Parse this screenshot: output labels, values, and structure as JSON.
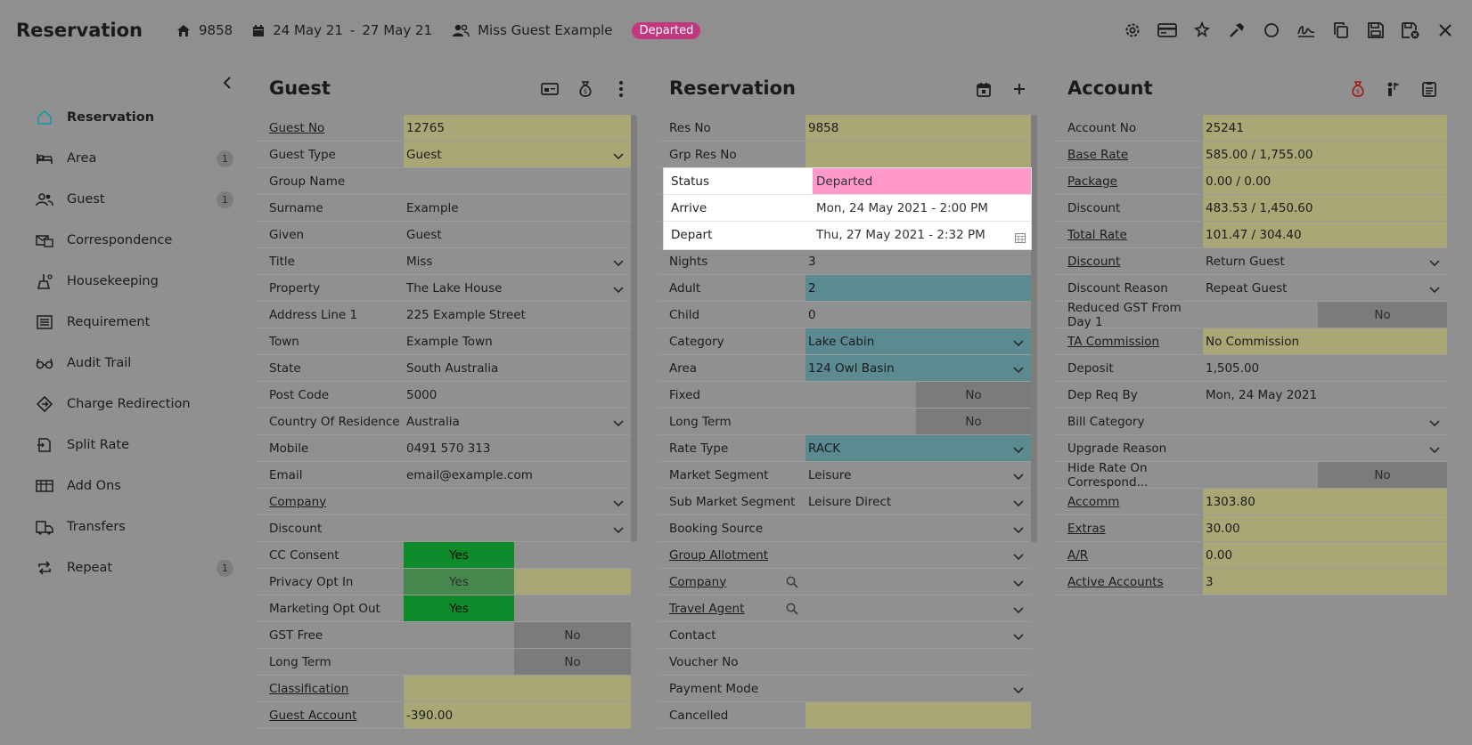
{
  "header": {
    "title": "Reservation",
    "res_no": "9858",
    "arrive": "24 May 21",
    "dash": "-",
    "depart": "27 May 21",
    "guest": "Miss Guest Example",
    "status": "Departed"
  },
  "sidebar": {
    "items": [
      {
        "label": "Reservation",
        "icon": "home-icon",
        "count": ""
      },
      {
        "label": "Area",
        "icon": "bed-icon",
        "count": "1"
      },
      {
        "label": "Guest",
        "icon": "guests-icon",
        "count": "1"
      },
      {
        "label": "Correspondence",
        "icon": "correspondence-icon",
        "count": ""
      },
      {
        "label": "Housekeeping",
        "icon": "housekeeping-icon",
        "count": ""
      },
      {
        "label": "Requirement",
        "icon": "requirement-icon",
        "count": ""
      },
      {
        "label": "Audit Trail",
        "icon": "glasses-icon",
        "count": ""
      },
      {
        "label": "Charge Redirection",
        "icon": "redirect-icon",
        "count": ""
      },
      {
        "label": "Split Rate",
        "icon": "split-icon",
        "count": ""
      },
      {
        "label": "Add Ons",
        "icon": "addons-icon",
        "count": ""
      },
      {
        "label": "Transfers",
        "icon": "transfer-icon",
        "count": ""
      },
      {
        "label": "Repeat",
        "icon": "repeat-icon",
        "count": "1"
      }
    ]
  },
  "guest": {
    "title": "Guest",
    "rows": [
      {
        "label": "Guest No",
        "value": "12765",
        "link": true,
        "style": "y"
      },
      {
        "label": "Guest Type",
        "value": "Guest",
        "style": "y",
        "dropdown": true
      },
      {
        "label": "Group Name",
        "value": ""
      },
      {
        "label": "Surname",
        "value": "Example"
      },
      {
        "label": "Given",
        "value": "Guest"
      },
      {
        "label": "Title",
        "value": "Miss",
        "dropdown": true
      },
      {
        "label": "Property",
        "value": "The Lake House",
        "dropdown": true
      },
      {
        "label": "Address Line 1",
        "value": "225 Example Street"
      },
      {
        "label": "Town",
        "value": "Example Town"
      },
      {
        "label": "State",
        "value": "South Australia"
      },
      {
        "label": "Post Code",
        "value": "5000"
      },
      {
        "label": "Country Of Residence",
        "value": "Australia",
        "dropdown": true
      },
      {
        "label": "Mobile",
        "value": "0491 570 313"
      },
      {
        "label": "Email",
        "value": "email@example.com"
      },
      {
        "label": "Company",
        "value": "",
        "link": true,
        "dropdown": true
      },
      {
        "label": "Discount",
        "value": "",
        "dropdown": true
      },
      {
        "label": "CC Consent",
        "toggle": "Yes"
      },
      {
        "label": "Privacy Opt In",
        "toggle": "Yes",
        "dim": true
      },
      {
        "label": "Marketing Opt Out",
        "toggle": "Yes"
      },
      {
        "label": "GST Free",
        "toggle": "No"
      },
      {
        "label": "Long Term",
        "toggle": "No"
      },
      {
        "label": "Classification",
        "value": "",
        "link": true,
        "style": "y"
      },
      {
        "label": "Guest Account",
        "value": "-390.00",
        "link": true,
        "style": "y"
      }
    ]
  },
  "reservation": {
    "title": "Reservation",
    "rows": [
      {
        "label": "Res No",
        "value": "9858",
        "style": "y"
      },
      {
        "label": "Grp Res No",
        "value": "",
        "style": "y"
      },
      {
        "label": "Status",
        "value": "Departed"
      },
      {
        "label": "Arrive",
        "value": "Mon, 24 May 2021 - 2:00 PM"
      },
      {
        "label": "Depart",
        "value": "Thu, 27 May 2021 - 2:32 PM"
      },
      {
        "label": "Nights",
        "value": "3"
      },
      {
        "label": "Adult",
        "value": "2",
        "style": "t"
      },
      {
        "label": "Child",
        "value": "0"
      },
      {
        "label": "Category",
        "value": "Lake Cabin",
        "style": "t",
        "dropdown": true
      },
      {
        "label": "Area",
        "value": "124 Owl Basin",
        "style": "t",
        "dropdown": true
      },
      {
        "label": "Fixed",
        "toggle": "No"
      },
      {
        "label": "Long Term",
        "toggle": "No"
      },
      {
        "label": "Rate Type",
        "value": "RACK",
        "style": "t",
        "dropdown": true
      },
      {
        "label": "Market Segment",
        "value": "Leisure",
        "dropdown": true
      },
      {
        "label": "Sub Market Segment",
        "value": "Leisure Direct",
        "dropdown": true
      },
      {
        "label": "Booking Source",
        "value": "",
        "dropdown": true
      },
      {
        "label": "Group Allotment",
        "value": "",
        "link": true,
        "dropdown": true
      },
      {
        "label": "Company",
        "value": "",
        "link": true,
        "dropdown": true,
        "search": true
      },
      {
        "label": "Travel Agent",
        "value": "",
        "link": true,
        "dropdown": true,
        "search": true
      },
      {
        "label": "Contact",
        "value": "",
        "dropdown": true
      },
      {
        "label": "Voucher No",
        "value": ""
      },
      {
        "label": "Payment Mode",
        "value": "",
        "dropdown": true
      },
      {
        "label": "Cancelled",
        "value": "",
        "style": "y"
      }
    ]
  },
  "account": {
    "title": "Account",
    "rows": [
      {
        "label": "Account No",
        "value": "25241",
        "style": "y"
      },
      {
        "label": "Base Rate",
        "value": "585.00 / 1,755.00",
        "link": true,
        "style": "y"
      },
      {
        "label": "Package",
        "value": "0.00 / 0.00",
        "link": true,
        "style": "y"
      },
      {
        "label": "Discount",
        "value": "483.53 / 1,450.60",
        "style": "y"
      },
      {
        "label": "Total Rate",
        "value": "101.47 / 304.40",
        "link": true,
        "style": "y"
      },
      {
        "label": "Discount",
        "value": "Return Guest",
        "link": true,
        "dropdown": true
      },
      {
        "label": "Discount Reason",
        "value": "Repeat Guest",
        "dropdown": true
      },
      {
        "label": "Reduced GST From Day 1",
        "toggle": "No"
      },
      {
        "label": "TA Commission",
        "value": "No Commission",
        "link": true,
        "style": "y"
      },
      {
        "label": "Deposit",
        "value": "1,505.00"
      },
      {
        "label": "Dep Req By",
        "value": "Mon, 24 May 2021"
      },
      {
        "label": "Bill Category",
        "value": "",
        "dropdown": true
      },
      {
        "label": "Upgrade Reason",
        "value": "",
        "dropdown": true
      },
      {
        "label": "Hide Rate On Correspond...",
        "toggle": "No"
      },
      {
        "label": "Accomm",
        "value": "1303.80",
        "link": true,
        "style": "y"
      },
      {
        "label": "Extras",
        "value": "30.00",
        "link": true,
        "style": "y"
      },
      {
        "label": "A/R",
        "value": "0.00",
        "link": true,
        "style": "y"
      },
      {
        "label": "Active Accounts",
        "value": "3",
        "link": true,
        "style": "y"
      }
    ]
  },
  "colors": {
    "status_badge": "#c2387e",
    "status_field": "#ff99cc",
    "toggle_yes": "#0e8a2a"
  }
}
